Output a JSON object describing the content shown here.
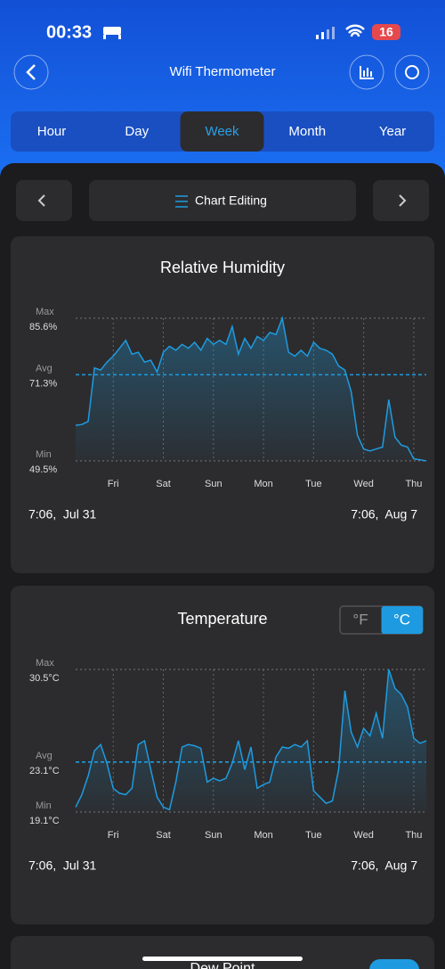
{
  "status_bar": {
    "time": "00:33",
    "battery": "16"
  },
  "header": {
    "title": "Wifi Thermometer"
  },
  "tabs": {
    "items": [
      "Hour",
      "Day",
      "Week",
      "Month",
      "Year"
    ],
    "active": 2
  },
  "toolbar": {
    "label": "Chart Editing"
  },
  "chart_data": [
    {
      "type": "line",
      "title": "Relative Humidity",
      "color": "#1e9be0",
      "categories": [
        null,
        null,
        null,
        null,
        null,
        null,
        "Fri",
        null,
        null,
        null,
        null,
        null,
        null,
        null,
        "Sat",
        null,
        null,
        null,
        null,
        null,
        null,
        null,
        "Sun",
        null,
        null,
        null,
        null,
        null,
        null,
        null,
        "Mon",
        null,
        null,
        null,
        null,
        null,
        null,
        null,
        "Tue",
        null,
        null,
        null,
        null,
        null,
        null,
        null,
        "Wed",
        null,
        null,
        null,
        null,
        null,
        null,
        null,
        "Thu",
        null,
        null
      ],
      "values": [
        58.5,
        58.7,
        59.5,
        73.0,
        72.5,
        74.5,
        76.0,
        78.0,
        80.0,
        76.5,
        77.0,
        74.5,
        75.0,
        72.0,
        77.0,
        78.5,
        77.5,
        79.0,
        78.0,
        79.5,
        77.5,
        80.5,
        79.0,
        80.0,
        79.0,
        83.5,
        76.5,
        80.5,
        78.0,
        81.0,
        80.0,
        82.0,
        81.5,
        85.6,
        77.0,
        76.0,
        77.5,
        76.0,
        79.5,
        78.0,
        77.5,
        76.5,
        73.5,
        72.5,
        67.0,
        56.0,
        52.5,
        52.0,
        52.5,
        53.0,
        65.0,
        55.5,
        53.5,
        53.0,
        50.0,
        49.8,
        49.5
      ],
      "ylim": [
        49.5,
        85.6
      ],
      "yticks": [
        {
          "value": 49.5,
          "label": "49.5%"
        },
        {
          "value": 71.3,
          "label": "71.3%"
        },
        {
          "value": 85.6,
          "label": "85.6%"
        }
      ],
      "ytick_titles": [
        "Min",
        "Avg",
        "Max"
      ],
      "start_label": "7:06,  Jul 31",
      "end_label": "7:06,  Aug 7"
    },
    {
      "type": "line",
      "title": "Temperature",
      "color": "#1e9be0",
      "categories": [
        null,
        null,
        null,
        null,
        null,
        null,
        "Fri",
        null,
        null,
        null,
        null,
        null,
        null,
        null,
        "Sat",
        null,
        null,
        null,
        null,
        null,
        null,
        null,
        "Sun",
        null,
        null,
        null,
        null,
        null,
        null,
        null,
        "Mon",
        null,
        null,
        null,
        null,
        null,
        null,
        null,
        "Tue",
        null,
        null,
        null,
        null,
        null,
        null,
        null,
        "Wed",
        null,
        null,
        null,
        null,
        null,
        null,
        null,
        "Thu",
        null,
        null
      ],
      "values": [
        19.5,
        20.5,
        22.0,
        24.0,
        24.5,
        23.0,
        21.0,
        20.6,
        20.5,
        21.0,
        24.5,
        24.8,
        22.5,
        20.3,
        19.5,
        19.3,
        21.5,
        24.3,
        24.5,
        24.4,
        24.2,
        21.5,
        21.8,
        21.6,
        21.8,
        23.0,
        24.8,
        22.5,
        24.3,
        21.0,
        21.3,
        21.5,
        23.5,
        24.3,
        24.2,
        24.5,
        24.3,
        24.8,
        20.8,
        20.3,
        19.8,
        20.0,
        22.5,
        28.8,
        25.5,
        24.3,
        25.8,
        25.2,
        27.0,
        25.0,
        30.5,
        29.0,
        28.5,
        27.5,
        25.0,
        24.6,
        24.8
      ],
      "ylim": [
        19.1,
        30.5
      ],
      "yticks": [
        {
          "value": 19.1,
          "label": "19.1°C"
        },
        {
          "value": 23.1,
          "label": "23.1°C"
        },
        {
          "value": 30.5,
          "label": "30.5°C"
        }
      ],
      "ytick_titles": [
        "Min",
        "Avg",
        "Max"
      ],
      "start_label": "7:06,  Jul 31",
      "end_label": "7:06,  Aug 7",
      "unit_toggle": {
        "options": [
          "°F",
          "°C"
        ],
        "active": 1
      }
    }
  ],
  "next_card": {
    "title": "Dew Point"
  }
}
